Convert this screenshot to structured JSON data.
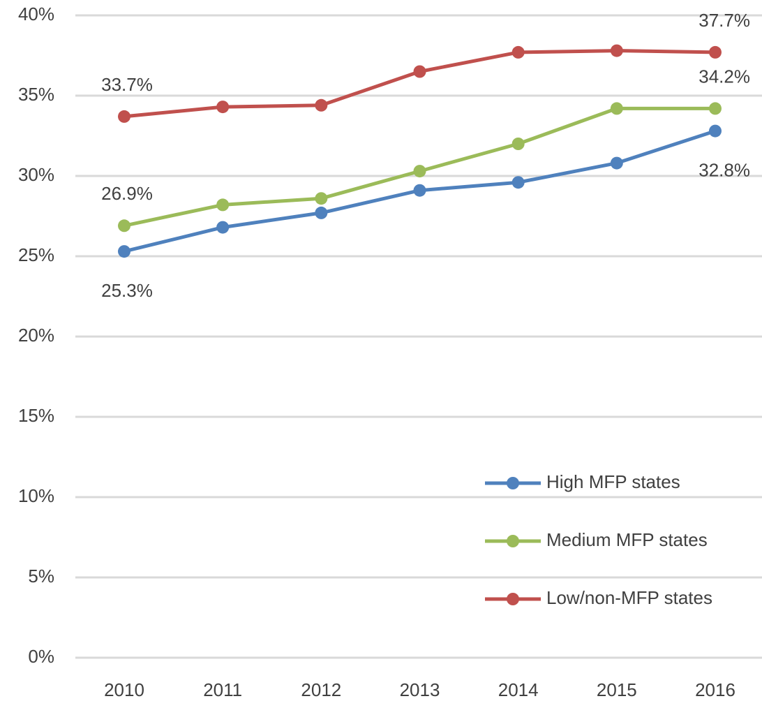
{
  "chart_data": {
    "type": "line",
    "categories": [
      "2010",
      "2011",
      "2012",
      "2013",
      "2014",
      "2015",
      "2016"
    ],
    "series": [
      {
        "name": "High MFP states",
        "color": "#4f81bd",
        "values": [
          25.3,
          26.8,
          27.7,
          29.1,
          29.6,
          30.8,
          32.8
        ],
        "value_labels": [
          "25.3%",
          null,
          null,
          null,
          null,
          null,
          "32.8%"
        ]
      },
      {
        "name": "Medium MFP states",
        "color": "#9bbb59",
        "values": [
          26.9,
          28.2,
          28.6,
          30.3,
          32.0,
          34.2,
          34.2
        ],
        "value_labels": [
          "26.9%",
          null,
          null,
          null,
          null,
          null,
          "34.2%"
        ]
      },
      {
        "name": "Low/non-MFP states",
        "color": "#c0504d",
        "values": [
          33.7,
          34.3,
          34.4,
          36.5,
          37.7,
          37.8,
          37.7
        ],
        "value_labels": [
          "33.7%",
          null,
          null,
          null,
          null,
          null,
          "37.7%"
        ]
      }
    ],
    "ylim": [
      0,
      40
    ],
    "yticks": [
      {
        "value": 0,
        "label": "0%"
      },
      {
        "value": 5,
        "label": "5%"
      },
      {
        "value": 10,
        "label": "10%"
      },
      {
        "value": 15,
        "label": "15%"
      },
      {
        "value": 20,
        "label": "20%"
      },
      {
        "value": 25,
        "label": "25%"
      },
      {
        "value": 30,
        "label": "30%"
      },
      {
        "value": 35,
        "label": "35%"
      },
      {
        "value": 40,
        "label": "40%"
      }
    ],
    "grid": true,
    "legend": "lower right"
  }
}
